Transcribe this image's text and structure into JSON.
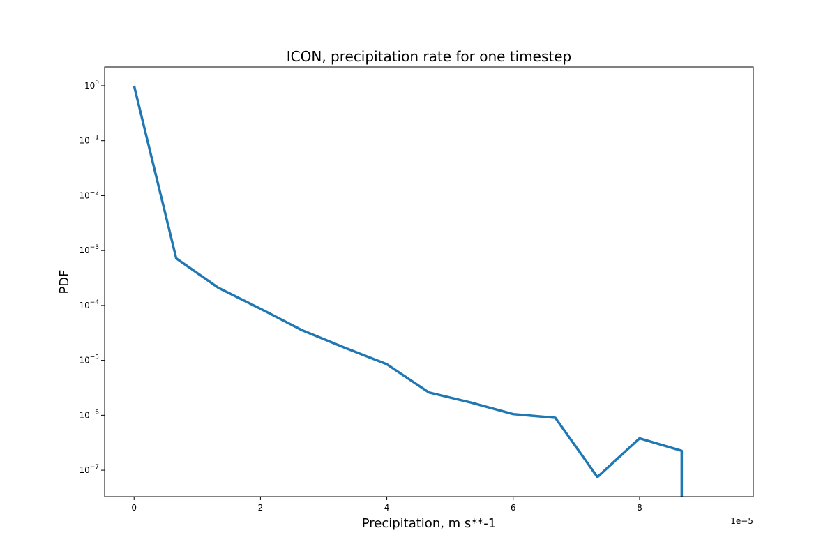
{
  "chart_data": {
    "type": "line",
    "title": "ICON, precipitation rate for one timestep",
    "xlabel": "Precipitation, m s**-1",
    "ylabel": "PDF",
    "x_offset_label": "1e−5",
    "xscale": "linear",
    "yscale": "log",
    "grid": false,
    "xlim": [
      -0.466,
      9.8
    ],
    "ylim": [
      3.3e-08,
      2.2
    ],
    "x_ticks": [
      0,
      2,
      4,
      6,
      8
    ],
    "x_tick_labels": [
      "0",
      "2",
      "4",
      "6",
      "8"
    ],
    "y_tick_exponents": [
      0,
      -1,
      -2,
      -3,
      -4,
      -5,
      -6,
      -7
    ],
    "y_tick_base": "10",
    "series": [
      {
        "color": "#1f77b4",
        "x": [
          0,
          0.667,
          1.333,
          2.0,
          2.667,
          3.333,
          4.0,
          4.667,
          5.333,
          6.0,
          6.667,
          7.333,
          8.0,
          8.667,
          8.667
        ],
        "y": [
          1.0,
          0.00072,
          0.00021,
          8.7e-05,
          3.5e-05,
          1.7e-05,
          8.5e-06,
          2.6e-06,
          1.7e-06,
          1.05e-06,
          9e-07,
          7.5e-08,
          3.8e-07,
          2.25e-07,
          3.3e-08
        ]
      }
    ]
  }
}
